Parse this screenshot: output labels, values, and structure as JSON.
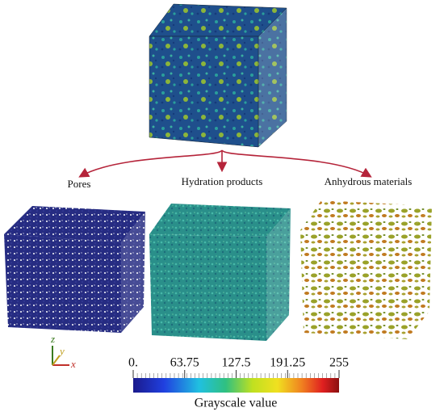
{
  "labels": {
    "left": "Pores",
    "middle": "Hydration products",
    "right": "Anhydrous materials"
  },
  "axes": {
    "z": "z",
    "y": "y",
    "x": "x"
  },
  "colorbar": {
    "title": "Grayscale value",
    "range": [
      0,
      255
    ],
    "ticks": [
      {
        "value": 0,
        "label": "0."
      },
      63.75,
      127.5,
      191.25,
      255
    ]
  }
}
